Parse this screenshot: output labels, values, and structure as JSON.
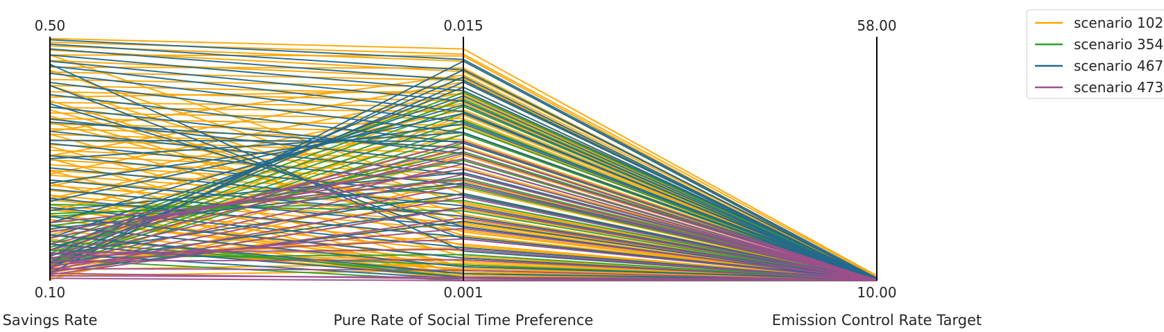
{
  "chart_data": {
    "type": "parallel_coordinates",
    "axes": [
      {
        "label": "Savings Rate",
        "min": 0.1,
        "max": 0.5,
        "min_label": "0.10",
        "max_label": "0.50"
      },
      {
        "label": "Pure Rate of Social Time Preference",
        "min": 0.001,
        "max": 0.015,
        "min_label": "0.001",
        "max_label": "0.015"
      },
      {
        "label": "Emission Control Rate Target",
        "min": 10.0,
        "max": 58.0,
        "min_label": "10.00",
        "max_label": "58.00"
      }
    ],
    "legend": {
      "placement": "top-right"
    },
    "series": [
      {
        "name": "scenario 102",
        "color": "#FFA500",
        "lines": [
          [
            0.497,
            0.0143,
            11.0
          ],
          [
            0.491,
            0.014,
            10.8
          ],
          [
            0.485,
            0.0136,
            10.3
          ],
          [
            0.478,
            0.013,
            10.6
          ],
          [
            0.47,
            0.0139,
            10.2
          ],
          [
            0.461,
            0.0126,
            10.4
          ],
          [
            0.45,
            0.0132,
            10.1
          ],
          [
            0.442,
            0.0125,
            10.5
          ],
          [
            0.43,
            0.0121,
            10.2
          ],
          [
            0.42,
            0.0117,
            10.3
          ],
          [
            0.41,
            0.0113,
            10.1
          ],
          [
            0.401,
            0.0119,
            10.4
          ],
          [
            0.392,
            0.011,
            10.2
          ],
          [
            0.384,
            0.0107,
            10.0
          ],
          [
            0.375,
            0.0103,
            10.3
          ],
          [
            0.366,
            0.0099,
            10.1
          ],
          [
            0.357,
            0.0095,
            10.5
          ],
          [
            0.349,
            0.0091,
            10.2
          ],
          [
            0.34,
            0.0087,
            10.0
          ],
          [
            0.331,
            0.0083,
            10.4
          ],
          [
            0.323,
            0.0079,
            10.1
          ],
          [
            0.314,
            0.0075,
            10.3
          ],
          [
            0.306,
            0.0071,
            10.0
          ],
          [
            0.298,
            0.0067,
            10.2
          ],
          [
            0.29,
            0.0063,
            10.1
          ],
          [
            0.281,
            0.0059,
            10.4
          ],
          [
            0.273,
            0.0055,
            10.0
          ],
          [
            0.265,
            0.0051,
            10.2
          ],
          [
            0.256,
            0.0047,
            10.1
          ],
          [
            0.248,
            0.0043,
            10.3
          ],
          [
            0.24,
            0.0039,
            10.0
          ],
          [
            0.232,
            0.0035,
            10.2
          ],
          [
            0.224,
            0.0031,
            10.1
          ],
          [
            0.216,
            0.0027,
            10.0
          ],
          [
            0.208,
            0.0023,
            10.2
          ],
          [
            0.2,
            0.0019,
            10.1
          ],
          [
            0.192,
            0.0016,
            10.0
          ],
          [
            0.184,
            0.0014,
            10.2
          ],
          [
            0.176,
            0.0012,
            10.1
          ],
          [
            0.168,
            0.0011,
            10.0
          ],
          [
            0.16,
            0.0013,
            10.3
          ],
          [
            0.152,
            0.0017,
            10.1
          ],
          [
            0.144,
            0.0022,
            10.0
          ],
          [
            0.136,
            0.0029,
            10.2
          ],
          [
            0.128,
            0.0036,
            10.0
          ],
          [
            0.12,
            0.0044,
            10.1
          ],
          [
            0.113,
            0.0052,
            10.0
          ],
          [
            0.106,
            0.006,
            10.2
          ],
          [
            0.102,
            0.0068,
            10.1
          ],
          [
            0.345,
            0.0128,
            10.6
          ],
          [
            0.305,
            0.0124,
            10.2
          ],
          [
            0.275,
            0.0118,
            10.4
          ],
          [
            0.255,
            0.0112,
            10.1
          ],
          [
            0.235,
            0.0108,
            10.3
          ],
          [
            0.215,
            0.0102,
            10.0
          ],
          [
            0.195,
            0.0098,
            10.2
          ],
          [
            0.175,
            0.0094,
            10.1
          ],
          [
            0.155,
            0.009,
            10.3
          ],
          [
            0.135,
            0.0086,
            10.0
          ],
          [
            0.115,
            0.0082,
            10.2
          ],
          [
            0.38,
            0.0045,
            10.1
          ],
          [
            0.36,
            0.0038,
            10.0
          ],
          [
            0.34,
            0.003,
            10.2
          ],
          [
            0.32,
            0.0024,
            10.1
          ],
          [
            0.3,
            0.0018,
            10.0
          ],
          [
            0.28,
            0.0014,
            10.1
          ],
          [
            0.26,
            0.0012,
            10.0
          ],
          [
            0.24,
            0.0011,
            10.2
          ],
          [
            0.22,
            0.0015,
            10.0
          ],
          [
            0.2,
            0.0021,
            10.1
          ],
          [
            0.47,
            0.006,
            10.0
          ],
          [
            0.445,
            0.0054,
            10.2
          ],
          [
            0.42,
            0.0048,
            10.1
          ],
          [
            0.395,
            0.0042,
            10.0
          ],
          [
            0.37,
            0.0036,
            10.2
          ],
          [
            0.11,
            0.0105,
            10.1
          ],
          [
            0.125,
            0.0115,
            10.3
          ],
          [
            0.14,
            0.0121,
            10.0
          ],
          [
            0.108,
            0.0016,
            10.1
          ],
          [
            0.118,
            0.002,
            10.0
          ]
        ]
      },
      {
        "name": "scenario 354",
        "color": "#2CA02C",
        "lines": [
          [
            0.16,
            0.0118,
            10.2
          ],
          [
            0.15,
            0.0114,
            10.0
          ],
          [
            0.145,
            0.011,
            10.1
          ],
          [
            0.14,
            0.0106,
            10.3
          ],
          [
            0.135,
            0.0102,
            10.0
          ],
          [
            0.13,
            0.0098,
            10.2
          ],
          [
            0.128,
            0.0094,
            10.1
          ],
          [
            0.124,
            0.0089,
            10.0
          ],
          [
            0.155,
            0.0084,
            10.2
          ],
          [
            0.17,
            0.0079,
            10.1
          ],
          [
            0.18,
            0.0074,
            10.0
          ],
          [
            0.19,
            0.0069,
            10.2
          ],
          [
            0.205,
            0.0064,
            10.1
          ],
          [
            0.138,
            0.0025,
            10.0
          ],
          [
            0.15,
            0.0019,
            10.1
          ],
          [
            0.165,
            0.0014,
            10.0
          ],
          [
            0.175,
            0.0012,
            10.2
          ],
          [
            0.135,
            0.001,
            10.0
          ],
          [
            0.21,
            0.0056,
            10.1
          ],
          [
            0.225,
            0.005,
            10.0
          ]
        ]
      },
      {
        "name": "scenario 467",
        "color": "#23698C",
        "lines": [
          [
            0.495,
            0.0137,
            10.5
          ],
          [
            0.488,
            0.0131,
            10.3
          ],
          [
            0.48,
            0.0125,
            10.1
          ],
          [
            0.47,
            0.0119,
            10.4
          ],
          [
            0.46,
            0.0113,
            10.2
          ],
          [
            0.452,
            0.0107,
            10.0
          ],
          [
            0.44,
            0.0101,
            10.3
          ],
          [
            0.425,
            0.0095,
            10.1
          ],
          [
            0.405,
            0.0089,
            10.4
          ],
          [
            0.385,
            0.0083,
            10.2
          ],
          [
            0.365,
            0.0077,
            10.0
          ],
          [
            0.345,
            0.0071,
            10.3
          ],
          [
            0.325,
            0.0065,
            10.1
          ],
          [
            0.305,
            0.0059,
            10.0
          ],
          [
            0.285,
            0.0053,
            10.2
          ],
          [
            0.265,
            0.0047,
            10.1
          ],
          [
            0.25,
            0.0041,
            10.0
          ],
          [
            0.235,
            0.0035,
            10.2
          ],
          [
            0.22,
            0.0029,
            10.1
          ],
          [
            0.205,
            0.0023,
            10.0
          ],
          [
            0.19,
            0.0018,
            10.3
          ],
          [
            0.175,
            0.0014,
            10.1
          ],
          [
            0.16,
            0.0012,
            10.0
          ],
          [
            0.145,
            0.0011,
            10.2
          ],
          [
            0.13,
            0.0124,
            10.1
          ],
          [
            0.12,
            0.0131,
            10.3
          ],
          [
            0.112,
            0.0136,
            10.2
          ],
          [
            0.14,
            0.0127,
            10.0
          ],
          [
            0.15,
            0.0121,
            10.2
          ],
          [
            0.17,
            0.0116,
            10.1
          ],
          [
            0.195,
            0.0111,
            10.0
          ],
          [
            0.23,
            0.0106,
            10.3
          ],
          [
            0.26,
            0.01,
            10.1
          ],
          [
            0.3,
            0.0095,
            10.2
          ],
          [
            0.33,
            0.009,
            10.0
          ],
          [
            0.36,
            0.0086,
            10.1
          ],
          [
            0.39,
            0.0041,
            10.0
          ],
          [
            0.42,
            0.0034,
            10.2
          ],
          [
            0.455,
            0.0027,
            10.1
          ],
          [
            0.115,
            0.0044,
            10.0
          ],
          [
            0.128,
            0.0052,
            10.1
          ],
          [
            0.142,
            0.006,
            10.0
          ],
          [
            0.185,
            0.0066,
            10.2
          ],
          [
            0.215,
            0.0072,
            10.1
          ]
        ]
      },
      {
        "name": "scenario 473",
        "color": "#9E4F8A",
        "lines": [
          [
            0.15,
            0.009,
            10.0
          ],
          [
            0.142,
            0.0083,
            10.1
          ],
          [
            0.135,
            0.0077,
            10.0
          ],
          [
            0.128,
            0.0071,
            10.2
          ],
          [
            0.122,
            0.0065,
            10.1
          ],
          [
            0.118,
            0.0058,
            10.0
          ],
          [
            0.114,
            0.0052,
            10.1
          ],
          [
            0.11,
            0.0046,
            10.0
          ],
          [
            0.125,
            0.004,
            10.2
          ],
          [
            0.138,
            0.0034,
            10.1
          ],
          [
            0.145,
            0.0028,
            10.0
          ],
          [
            0.132,
            0.0022,
            10.1
          ],
          [
            0.12,
            0.0016,
            10.0
          ],
          [
            0.108,
            0.0012,
            10.2
          ],
          [
            0.104,
            0.001,
            10.1
          ],
          [
            0.112,
            0.0011,
            10.0
          ],
          [
            0.16,
            0.0086,
            10.1
          ],
          [
            0.17,
            0.008,
            10.0
          ],
          [
            0.18,
            0.0074,
            10.2
          ],
          [
            0.195,
            0.0068,
            10.1
          ]
        ]
      }
    ]
  }
}
